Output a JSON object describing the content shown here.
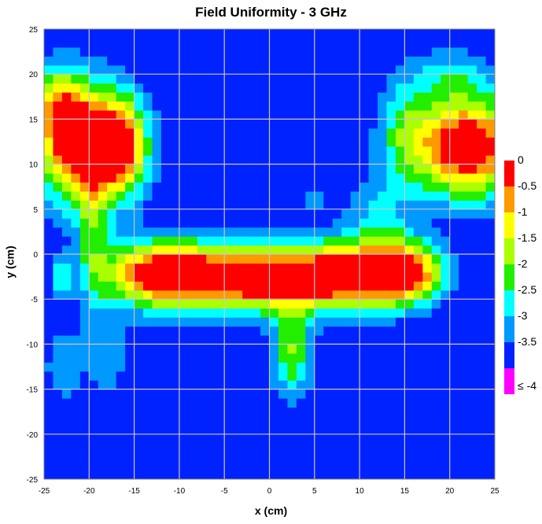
{
  "chart_data": {
    "type": "heatmap",
    "title": "Field Uniformity - 3 GHz",
    "xlabel": "x (cm)",
    "ylabel": "y (cm)",
    "xlim": [
      -25,
      25
    ],
    "ylim": [
      -25,
      25
    ],
    "x_ticks": [
      "-25",
      "-20",
      "-15",
      "-10",
      "-5",
      "0",
      "5",
      "10",
      "15",
      "20",
      "25"
    ],
    "y_ticks": [
      "-25",
      "-20",
      "-15",
      "-10",
      "-5",
      "0",
      "5",
      "10",
      "15",
      "20",
      "25"
    ],
    "grid": true,
    "legend_position": "right",
    "color_scale": {
      "labels": [
        "0",
        "-0.5",
        "-1",
        "-1.5",
        "-2",
        "-2.5",
        "-3",
        "-3.5",
        "≤ -4"
      ],
      "colors": [
        "#ff0000",
        "#ff9900",
        "#ffff00",
        "#aaff00",
        "#22ee00",
        "#00ffff",
        "#0099ff",
        "#0022ff",
        "#ff00ff"
      ],
      "levels": [
        -0.5,
        -1,
        -1.5,
        -2,
        -2.5,
        -3,
        -3.5,
        -4
      ]
    },
    "features": [
      {
        "x": -21.5,
        "y": 12.5,
        "sx": 4.2,
        "sy": 6.5,
        "amp": 4.3
      },
      {
        "x": -16.5,
        "y": 12,
        "sx": 3.2,
        "sy": 5.5,
        "amp": 3.6
      },
      {
        "x": -23.5,
        "y": 17,
        "sx": 2.5,
        "sy": 4,
        "amp": 1.5
      },
      {
        "x": 22,
        "y": 12,
        "sx": 6,
        "sy": 5.5,
        "amp": 4.4
      },
      {
        "x": 15,
        "y": 14,
        "sx": 3,
        "sy": 6,
        "amp": 1.2
      },
      {
        "x": 20,
        "y": 20,
        "sx": 4,
        "sy": 3,
        "amp": 1.0
      },
      {
        "x": -12,
        "y": -2.2,
        "sx": 6,
        "sy": 3.6,
        "amp": 4.2
      },
      {
        "x": -2,
        "y": -2.6,
        "sx": 7,
        "sy": 3.6,
        "amp": 4.2
      },
      {
        "x": 8,
        "y": -2.4,
        "sx": 6,
        "sy": 3.6,
        "amp": 4.1
      },
      {
        "x": 15,
        "y": -2,
        "sx": 4,
        "sy": 3.4,
        "amp": 4.0
      },
      {
        "x": -19.5,
        "y": 2,
        "sx": 2,
        "sy": 8,
        "amp": 1.4
      },
      {
        "x": 12,
        "y": 4,
        "sx": 3.5,
        "sy": 5,
        "amp": 1.0
      },
      {
        "x": 2.5,
        "y": -11,
        "sx": 2.2,
        "sy": 5,
        "amp": 2.0
      },
      {
        "x": -23,
        "y": -12.5,
        "sx": 2,
        "sy": 4,
        "amp": 0.9
      },
      {
        "x": -18,
        "y": -11.5,
        "sx": 2.8,
        "sy": 4.5,
        "amp": 0.8
      },
      {
        "x": -23,
        "y": -2.5,
        "sx": 1,
        "sy": 2,
        "amp": 1.5
      },
      {
        "x": 5,
        "y": 6,
        "sx": 2,
        "sy": 1.5,
        "amp": 0.7
      }
    ]
  }
}
